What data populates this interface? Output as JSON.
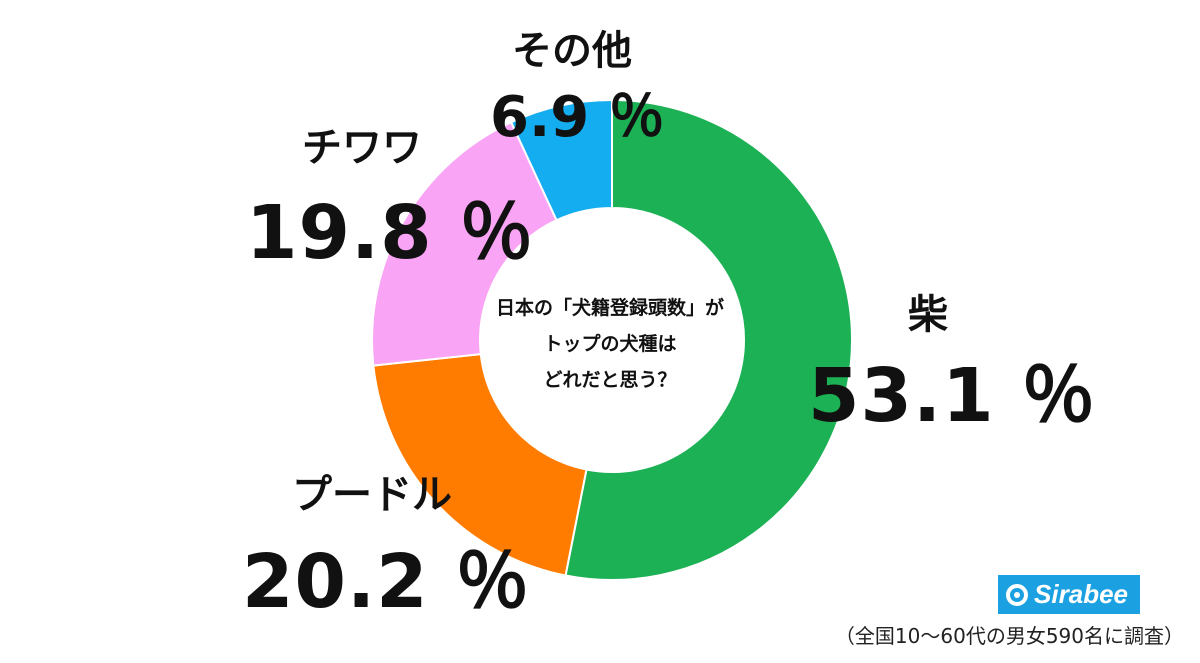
{
  "chart_data": {
    "type": "pie",
    "center_question": [
      "日本の「犬籍登録頭数」が",
      "トップの犬種は",
      "どれだと思う？"
    ],
    "slices": [
      {
        "label": "柴",
        "value": 53.1,
        "display": "53.1 ％",
        "color": "#1db155"
      },
      {
        "label": "プードル",
        "value": 20.2,
        "display": "20.2 ％",
        "color": "#ff7c00"
      },
      {
        "label": "チワワ",
        "value": 19.8,
        "display": "19.8 ％",
        "color": "#f9a4f4"
      },
      {
        "label": "その他",
        "value": 6.9,
        "display": "6.9 ％",
        "color": "#14adf0"
      }
    ]
  },
  "brand": {
    "name": "Sirabee",
    "color": "#1ba1e2"
  },
  "footnote": "（全国10〜60代の男女590名に調査）"
}
